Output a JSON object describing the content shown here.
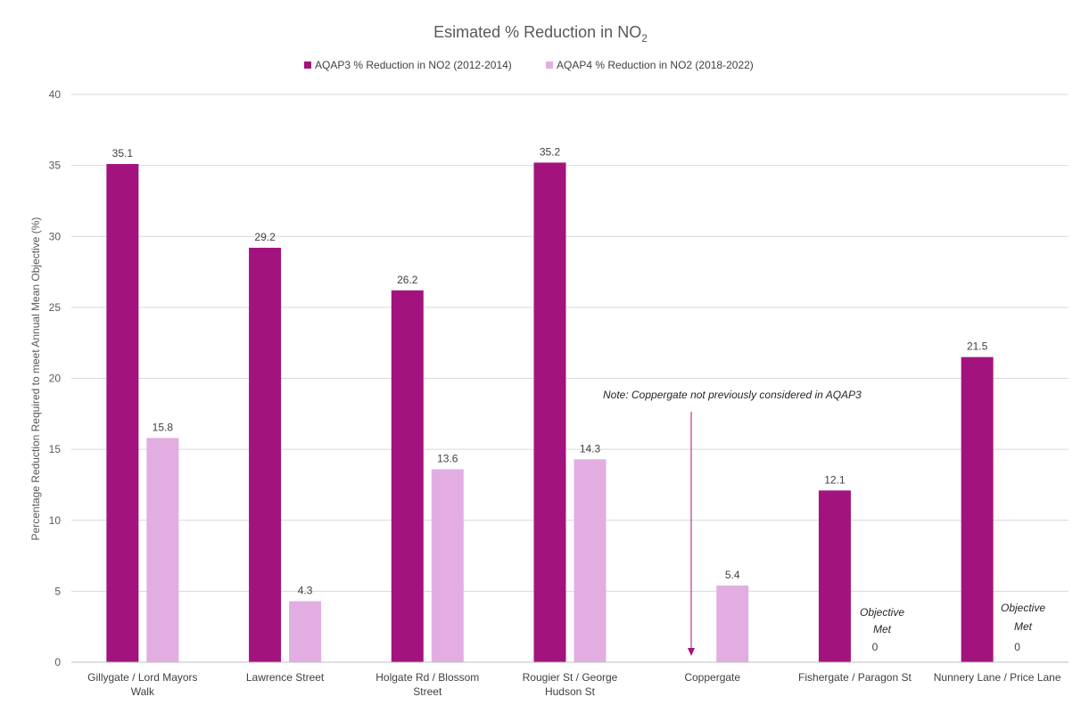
{
  "chart_data": {
    "type": "bar",
    "title_main": "Esimated % Reduction in NO",
    "title_sub": "2",
    "ylabel": "Percentage Reduction Required to meet Annual Mean Objective (%)",
    "xlabel": "",
    "ylim": [
      0,
      40
    ],
    "yticks": [
      0,
      5,
      10,
      15,
      20,
      25,
      30,
      35,
      40
    ],
    "grid": true,
    "legend_position": "top",
    "categories": [
      [
        "Gillygate / Lord Mayors",
        "Walk"
      ],
      [
        "Lawrence Street"
      ],
      [
        "Holgate Rd / Blossom",
        "Street"
      ],
      [
        "Rougier St / George",
        "Hudson St"
      ],
      [
        "Coppergate"
      ],
      [
        "Fishergate / Paragon St"
      ],
      [
        "Nunnery Lane / Price Lane"
      ]
    ],
    "series": [
      {
        "name": "AQAP3 % Reduction in NO2 (2012-2014)",
        "color": "#a3137e",
        "values": [
          35.1,
          29.2,
          26.2,
          35.2,
          null,
          12.1,
          21.5
        ],
        "labels": [
          "35.1",
          "29.2",
          "26.2",
          "35.2",
          "",
          "12.1",
          "21.5"
        ]
      },
      {
        "name": "AQAP4 % Reduction in NO2 (2018-2022)",
        "color": "#e2aee2",
        "values": [
          15.8,
          4.3,
          13.6,
          14.3,
          5.4,
          0,
          0
        ],
        "labels": [
          "15.8",
          "4.3",
          "13.6",
          "14.3",
          "5.4",
          "0",
          "0"
        ]
      }
    ],
    "annotations": {
      "note": "Note:  Coppergate not previously considered in AQAP3",
      "objective_met": [
        [
          "Objective",
          "Met"
        ],
        [
          "Objective",
          "Met"
        ]
      ]
    },
    "colors": {
      "arrow": "#a3137e",
      "grid": "#d9d9d9",
      "axis": "#bfbfbf"
    }
  }
}
